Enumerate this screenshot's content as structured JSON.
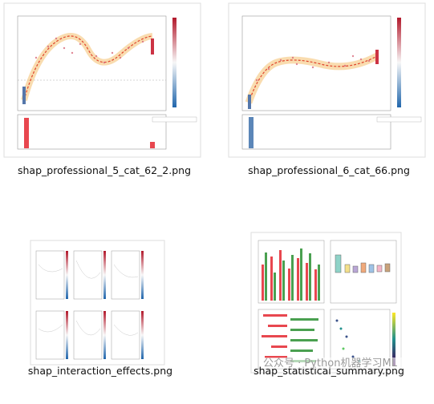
{
  "files": [
    {
      "name": "shap_professional_5_cat_62_2.png"
    },
    {
      "name": "shap_professional_6_cat_66.png"
    },
    {
      "name": "shap_interaction_effects.png"
    },
    {
      "name": "shap_statistical_summary.png"
    }
  ],
  "watermark": "公众号 · Python机器学习ML"
}
